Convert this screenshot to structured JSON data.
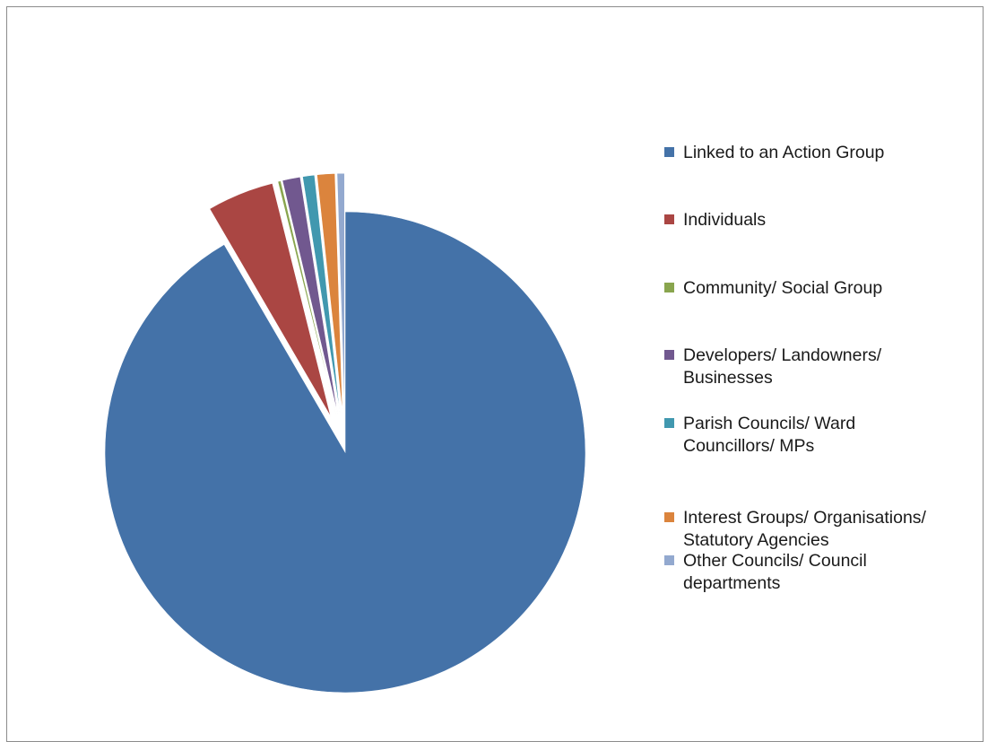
{
  "chart_data": {
    "type": "pie",
    "title": "",
    "exploded": true,
    "start_angle_deg": 0,
    "direction": "clockwise",
    "legend_position": "right",
    "categories": [
      "Linked to an Action Group",
      "Individuals",
      "Community/ Social Group",
      "Developers/ Landowners/ Businesses",
      "Parish Councils/ Ward Councillors/ MPs",
      "Interest Groups/ Organisations/ Statutory Agencies",
      "Other Councils/ Council departments"
    ],
    "legend_labels": [
      "Linked to an Action Group",
      "Individuals",
      "Community/ Social Group",
      "Developers/ Landowners/\nBusinesses",
      "Parish Councils/ Ward\nCouncillors/ MPs",
      "Interest Groups/ Organisations/\nStatutory Agencies",
      "Other Councils/ Council\ndepartments"
    ],
    "values": [
      91.6,
      4.5,
      0.2,
      1.2,
      0.8,
      1.2,
      0.5
    ],
    "colors": [
      "#4472a8",
      "#aa4643",
      "#89a54e",
      "#71588f",
      "#4198af",
      "#db843d",
      "#93a9cf"
    ]
  }
}
